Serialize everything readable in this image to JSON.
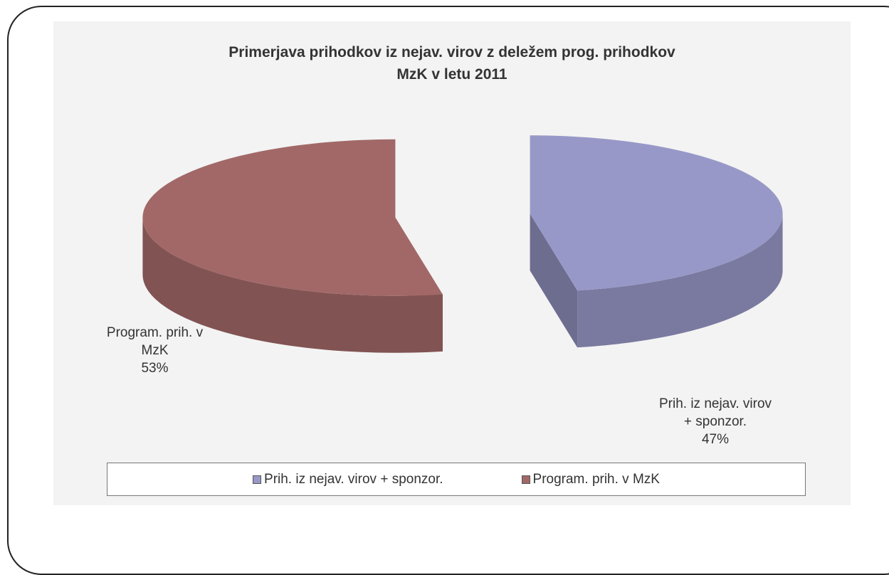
{
  "chart_data": {
    "type": "pie",
    "title": "Primerjava prihodkov iz nejav. virov z deležem prog. prihodkov MzK v letu 2011",
    "categories": [
      "Prih. iz nejav. virov + sponzor.",
      "Program. prih. v MzK"
    ],
    "values": [
      47,
      53
    ],
    "value_labels": [
      "47%",
      "53%"
    ],
    "colors": [
      "#9898c8",
      "#a26868"
    ],
    "legend": "bottom"
  }
}
